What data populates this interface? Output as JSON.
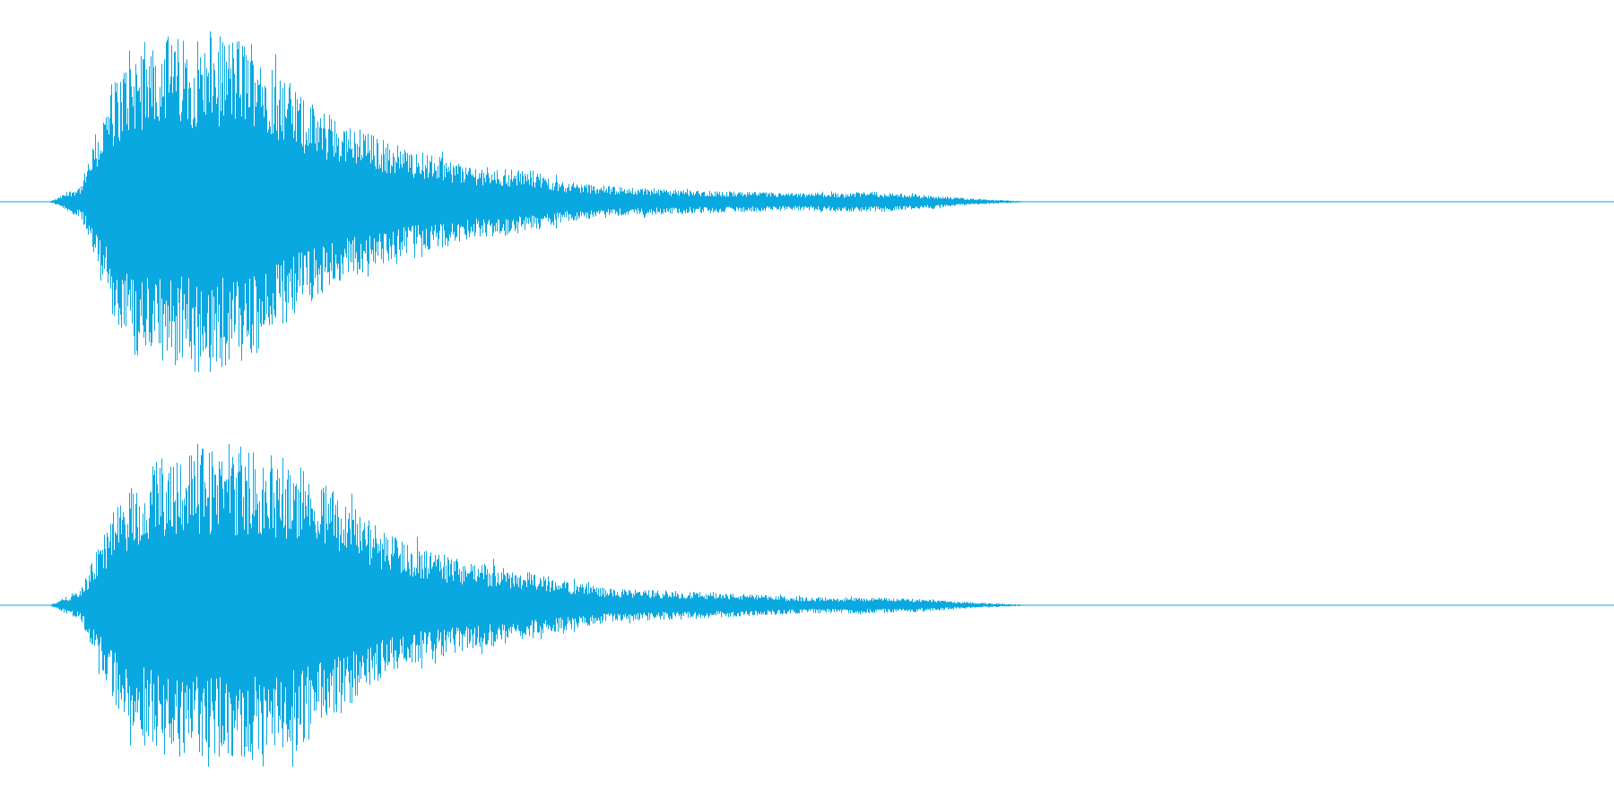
{
  "colors": {
    "background": "#ffffff",
    "waveform": "#0aa8e0",
    "baseline": "#0aa8e0"
  },
  "waveform": {
    "channels": [
      {
        "name": "",
        "envelope": [
          [
            0.0,
            0.0
          ],
          [
            0.03,
            0.0
          ],
          [
            0.035,
            0.02
          ],
          [
            0.04,
            0.05
          ],
          [
            0.05,
            0.1
          ],
          [
            0.06,
            0.4
          ],
          [
            0.07,
            0.7
          ],
          [
            0.08,
            0.88
          ],
          [
            0.09,
            0.95
          ],
          [
            0.1,
            1.0
          ],
          [
            0.12,
            0.95
          ],
          [
            0.14,
            0.98
          ],
          [
            0.16,
            0.97
          ],
          [
            0.175,
            0.75
          ],
          [
            0.19,
            0.6
          ],
          [
            0.21,
            0.48
          ],
          [
            0.23,
            0.4
          ],
          [
            0.25,
            0.32
          ],
          [
            0.27,
            0.27
          ],
          [
            0.29,
            0.22
          ],
          [
            0.31,
            0.2
          ],
          [
            0.33,
            0.18
          ],
          [
            0.35,
            0.12
          ],
          [
            0.38,
            0.09
          ],
          [
            0.42,
            0.07
          ],
          [
            0.46,
            0.06
          ],
          [
            0.5,
            0.05
          ],
          [
            0.54,
            0.06
          ],
          [
            0.56,
            0.05
          ],
          [
            0.6,
            0.02
          ],
          [
            0.64,
            0.0
          ],
          [
            1.0,
            0.0
          ]
        ]
      },
      {
        "name": "",
        "envelope": [
          [
            0.0,
            0.0
          ],
          [
            0.03,
            0.0
          ],
          [
            0.035,
            0.02
          ],
          [
            0.04,
            0.05
          ],
          [
            0.05,
            0.1
          ],
          [
            0.06,
            0.35
          ],
          [
            0.07,
            0.6
          ],
          [
            0.08,
            0.75
          ],
          [
            0.09,
            0.8
          ],
          [
            0.1,
            0.95
          ],
          [
            0.12,
            0.98
          ],
          [
            0.14,
            0.96
          ],
          [
            0.16,
            0.95
          ],
          [
            0.18,
            0.9
          ],
          [
            0.2,
            0.78
          ],
          [
            0.22,
            0.6
          ],
          [
            0.24,
            0.45
          ],
          [
            0.26,
            0.36
          ],
          [
            0.28,
            0.3
          ],
          [
            0.3,
            0.26
          ],
          [
            0.32,
            0.22
          ],
          [
            0.34,
            0.18
          ],
          [
            0.36,
            0.14
          ],
          [
            0.38,
            0.1
          ],
          [
            0.42,
            0.09
          ],
          [
            0.46,
            0.07
          ],
          [
            0.5,
            0.05
          ],
          [
            0.54,
            0.05
          ],
          [
            0.57,
            0.04
          ],
          [
            0.6,
            0.02
          ],
          [
            0.64,
            0.0
          ],
          [
            1.0,
            0.0
          ]
        ]
      }
    ]
  }
}
